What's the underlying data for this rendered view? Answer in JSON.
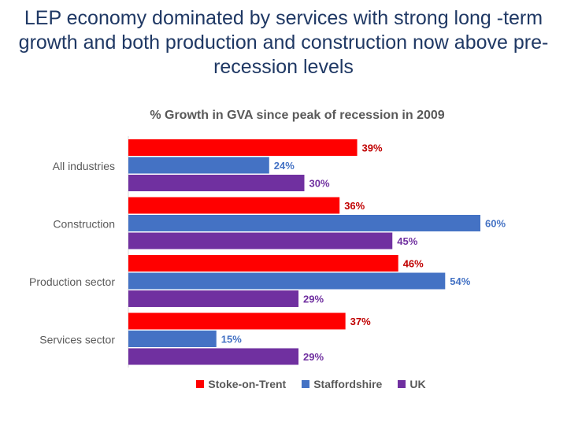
{
  "slide": {
    "title": "LEP economy dominated by services with strong long -term growth and both production and construction now above pre-recession levels"
  },
  "chart_data": {
    "type": "bar",
    "orientation": "horizontal",
    "title": "% Growth in GVA since peak of recession in 2009",
    "categories": [
      "All industries",
      "Construction",
      "Production sector",
      "Services sector"
    ],
    "series": [
      {
        "name": "Stoke-on-Trent",
        "values": [
          39,
          36,
          46,
          37
        ],
        "color": "#ff0000"
      },
      {
        "name": "Staffordshire",
        "values": [
          24,
          60,
          54,
          15
        ],
        "color": "#4472c4"
      },
      {
        "name": "UK",
        "values": [
          30,
          45,
          29,
          29
        ],
        "color": "#7030a0"
      }
    ],
    "value_suffix": "%",
    "xlim": [
      0,
      60
    ],
    "grid": false,
    "legend_position": "bottom",
    "label_colors": [
      "#c00000",
      "#4472c4",
      "#7030a0"
    ]
  }
}
